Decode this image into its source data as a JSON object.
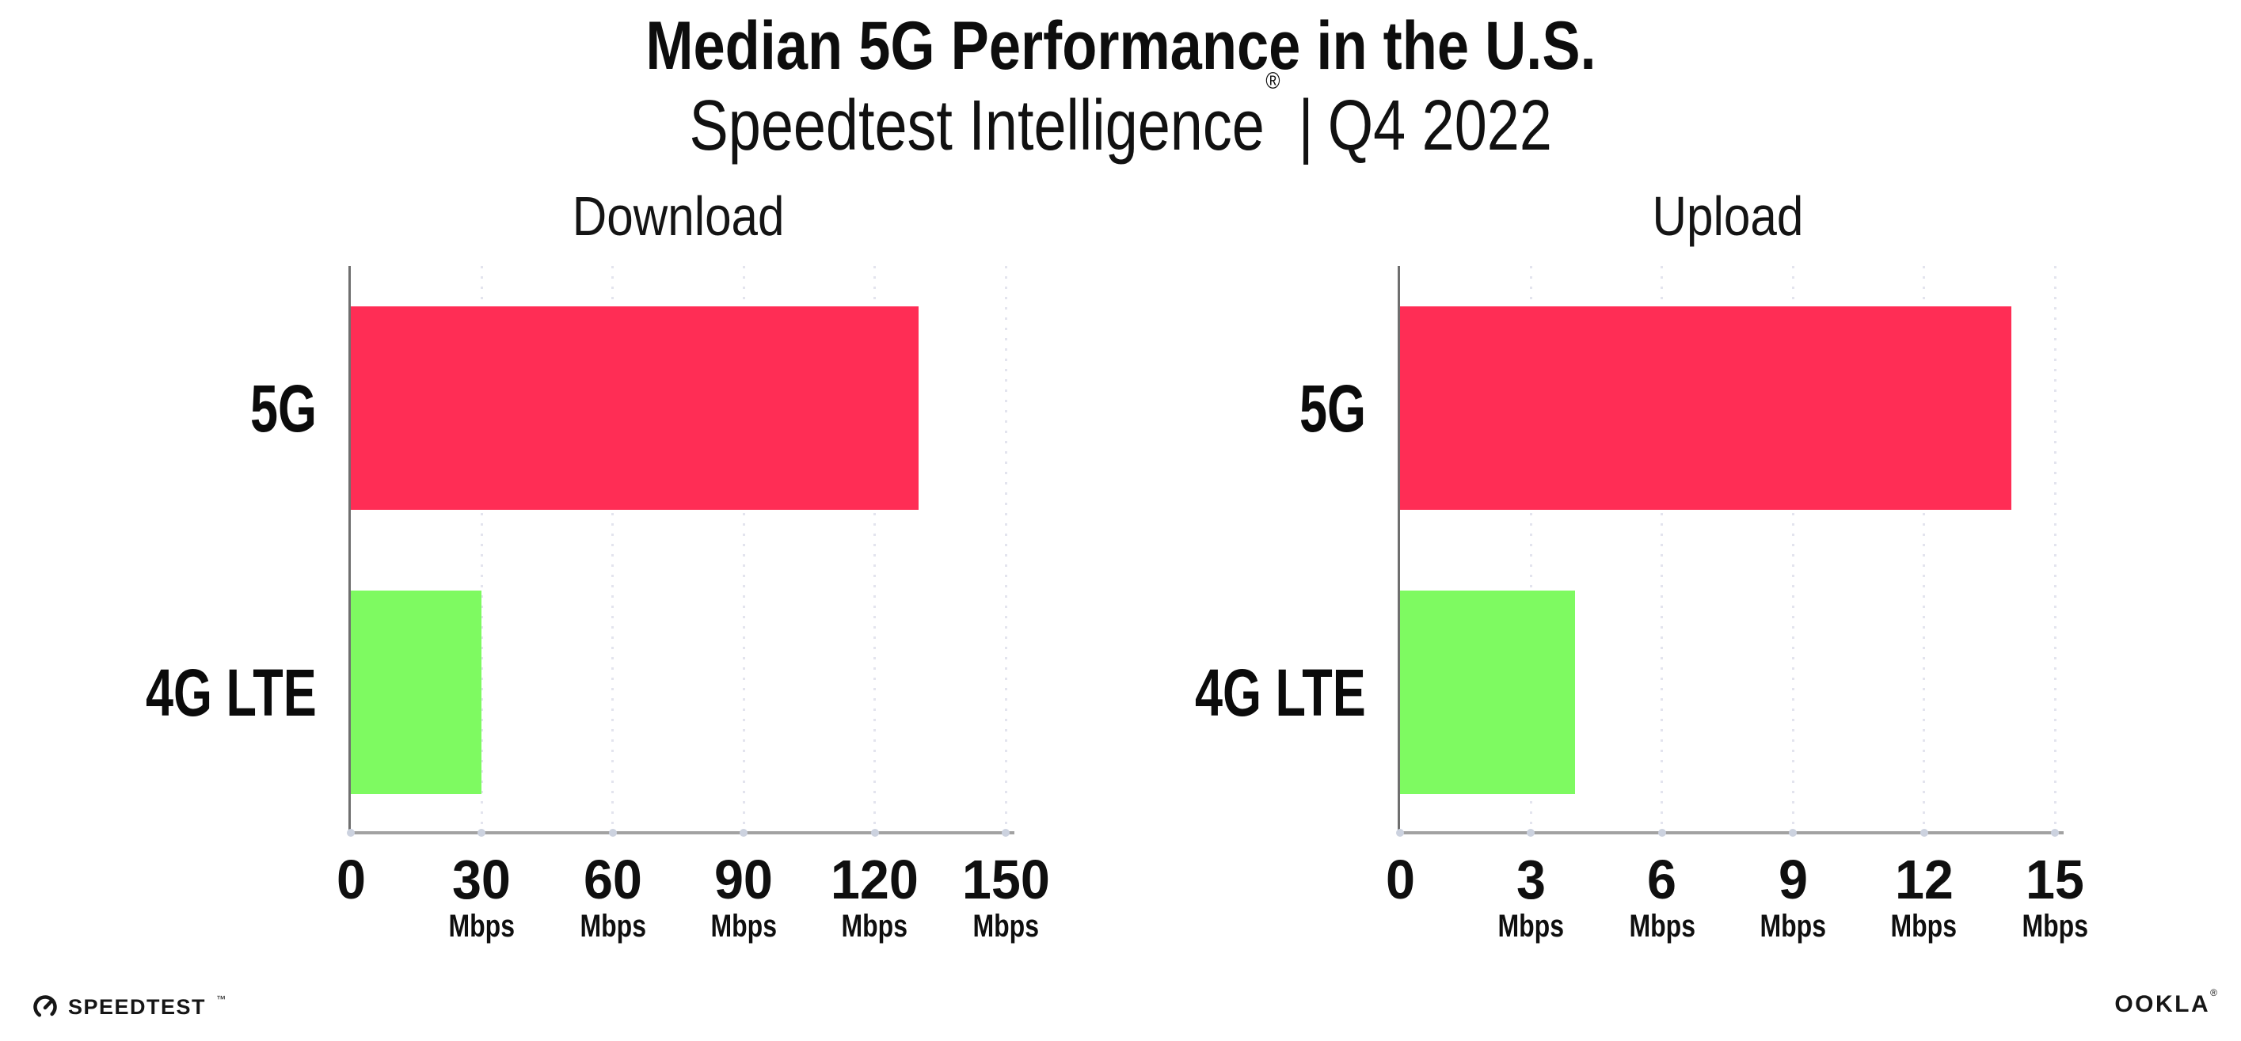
{
  "header": {
    "title": "Median 5G Performance in the U.S.",
    "subtitle_brand": "Speedtest Intelligence",
    "subtitle_reg": "®",
    "subtitle_sep": "|",
    "subtitle_period": "Q4 2022"
  },
  "chart_data": [
    {
      "type": "bar",
      "orientation": "horizontal",
      "title": "Download",
      "unit": "Mbps",
      "categories": [
        "5G",
        "4G LTE"
      ],
      "values": [
        130,
        30
      ],
      "xlim": [
        0,
        150
      ],
      "xticks": [
        0,
        30,
        60,
        90,
        120,
        150
      ],
      "bar_colors": [
        "#ff2d55",
        "#7efa61"
      ],
      "grid": "dotted vertical gridlines at each tick",
      "legend": "none"
    },
    {
      "type": "bar",
      "orientation": "horizontal",
      "title": "Upload",
      "unit": "Mbps",
      "categories": [
        "5G",
        "4G LTE"
      ],
      "values": [
        14,
        4
      ],
      "xlim": [
        0,
        15
      ],
      "xticks": [
        0,
        3,
        6,
        9,
        12,
        15
      ],
      "bar_colors": [
        "#ff2d55",
        "#7efa61"
      ],
      "grid": "dotted vertical gridlines at each tick",
      "legend": "none"
    }
  ],
  "footer": {
    "speedtest_logo_text": "SPEEDTEST",
    "speedtest_tm": "™",
    "ookla_logo_text": "OOKLA",
    "ookla_reg": "®"
  },
  "colors": {
    "bar_5g": "#ff2d55",
    "bar_4g_lte": "#7efa61",
    "gridline": "#e3e4ee",
    "x_axis_line": "#a2a2a2",
    "y_axis_line": "#6f6f6f",
    "tick_dot": "#ccd2df",
    "text": "#0d0d0d",
    "background": "#ffffff"
  }
}
